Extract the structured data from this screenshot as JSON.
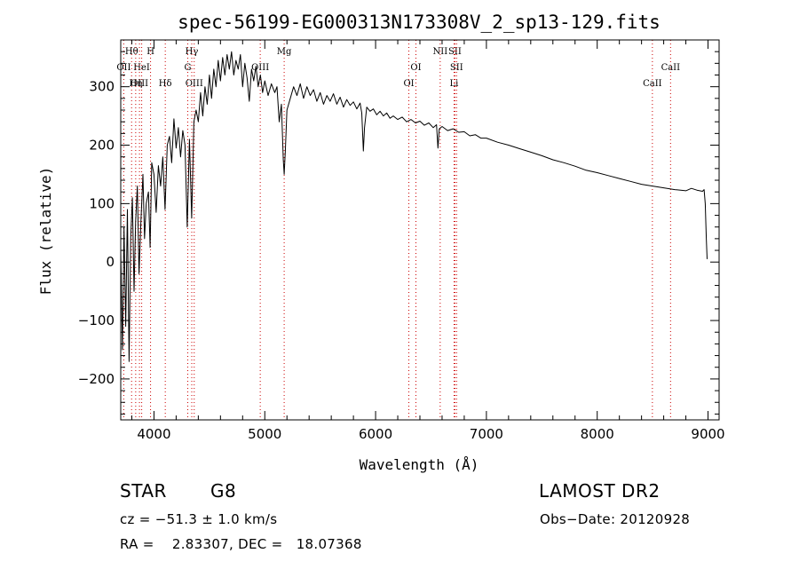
{
  "chart_data": {
    "type": "line",
    "title": "spec-56199-EG000313N173308V_2_sp13-129.fits",
    "xlabel": "Wavelength (Å)",
    "ylabel": "Flux (relative)",
    "xlim": [
      3700,
      9100
    ],
    "ylim": [
      -270,
      380
    ],
    "xticks": [
      "4000",
      "5000",
      "6000",
      "7000",
      "8000",
      "9000"
    ],
    "yticks": [
      "-200",
      "-100",
      "0",
      "100",
      "200",
      "300"
    ],
    "grid": false,
    "series": [
      {
        "values": [
          [
            3700,
            20
          ],
          [
            3715,
            -150
          ],
          [
            3730,
            60
          ],
          [
            3745,
            -110
          ],
          [
            3760,
            90
          ],
          [
            3775,
            -170
          ],
          [
            3790,
            40
          ],
          [
            3805,
            110
          ],
          [
            3820,
            -50
          ],
          [
            3835,
            70
          ],
          [
            3850,
            130
          ],
          [
            3865,
            -20
          ],
          [
            3880,
            60
          ],
          [
            3900,
            150
          ],
          [
            3915,
            40
          ],
          [
            3930,
            100
          ],
          [
            3950,
            120
          ],
          [
            3965,
            25
          ],
          [
            3980,
            170
          ],
          [
            4000,
            150
          ],
          [
            4020,
            85
          ],
          [
            4040,
            165
          ],
          [
            4060,
            130
          ],
          [
            4080,
            180
          ],
          [
            4100,
            90
          ],
          [
            4120,
            200
          ],
          [
            4140,
            215
          ],
          [
            4160,
            170
          ],
          [
            4180,
            245
          ],
          [
            4200,
            195
          ],
          [
            4220,
            230
          ],
          [
            4240,
            180
          ],
          [
            4260,
            225
          ],
          [
            4280,
            200
          ],
          [
            4300,
            60
          ],
          [
            4320,
            210
          ],
          [
            4340,
            75
          ],
          [
            4360,
            240
          ],
          [
            4380,
            260
          ],
          [
            4400,
            240
          ],
          [
            4420,
            290
          ],
          [
            4440,
            250
          ],
          [
            4460,
            300
          ],
          [
            4480,
            270
          ],
          [
            4500,
            320
          ],
          [
            4520,
            280
          ],
          [
            4540,
            330
          ],
          [
            4560,
            300
          ],
          [
            4580,
            345
          ],
          [
            4600,
            310
          ],
          [
            4620,
            350
          ],
          [
            4640,
            320
          ],
          [
            4660,
            355
          ],
          [
            4680,
            330
          ],
          [
            4700,
            360
          ],
          [
            4720,
            320
          ],
          [
            4740,
            345
          ],
          [
            4760,
            330
          ],
          [
            4780,
            355
          ],
          [
            4800,
            300
          ],
          [
            4820,
            340
          ],
          [
            4840,
            315
          ],
          [
            4860,
            275
          ],
          [
            4880,
            330
          ],
          [
            4900,
            310
          ],
          [
            4920,
            335
          ],
          [
            4940,
            300
          ],
          [
            4960,
            320
          ],
          [
            4980,
            290
          ],
          [
            5000,
            310
          ],
          [
            5030,
            285
          ],
          [
            5060,
            305
          ],
          [
            5090,
            290
          ],
          [
            5110,
            300
          ],
          [
            5130,
            240
          ],
          [
            5150,
            270
          ],
          [
            5167,
            175
          ],
          [
            5175,
            150
          ],
          [
            5185,
            190
          ],
          [
            5200,
            260
          ],
          [
            5230,
            280
          ],
          [
            5260,
            300
          ],
          [
            5290,
            285
          ],
          [
            5320,
            305
          ],
          [
            5350,
            280
          ],
          [
            5380,
            300
          ],
          [
            5410,
            285
          ],
          [
            5440,
            295
          ],
          [
            5470,
            275
          ],
          [
            5500,
            290
          ],
          [
            5530,
            270
          ],
          [
            5560,
            285
          ],
          [
            5590,
            275
          ],
          [
            5620,
            288
          ],
          [
            5650,
            270
          ],
          [
            5680,
            282
          ],
          [
            5710,
            265
          ],
          [
            5740,
            278
          ],
          [
            5770,
            268
          ],
          [
            5800,
            274
          ],
          [
            5830,
            262
          ],
          [
            5860,
            272
          ],
          [
            5875,
            255
          ],
          [
            5890,
            190
          ],
          [
            5900,
            230
          ],
          [
            5920,
            265
          ],
          [
            5950,
            258
          ],
          [
            5980,
            262
          ],
          [
            6010,
            252
          ],
          [
            6040,
            258
          ],
          [
            6070,
            250
          ],
          [
            6100,
            255
          ],
          [
            6130,
            246
          ],
          [
            6160,
            250
          ],
          [
            6200,
            244
          ],
          [
            6240,
            248
          ],
          [
            6280,
            240
          ],
          [
            6320,
            244
          ],
          [
            6360,
            238
          ],
          [
            6400,
            241
          ],
          [
            6440,
            234
          ],
          [
            6480,
            238
          ],
          [
            6520,
            230
          ],
          [
            6550,
            235
          ],
          [
            6563,
            195
          ],
          [
            6575,
            228
          ],
          [
            6600,
            232
          ],
          [
            6650,
            225
          ],
          [
            6700,
            228
          ],
          [
            6750,
            222
          ],
          [
            6800,
            223
          ],
          [
            6850,
            216
          ],
          [
            6900,
            218
          ],
          [
            6950,
            212
          ],
          [
            7000,
            212
          ],
          [
            7100,
            205
          ],
          [
            7200,
            200
          ],
          [
            7300,
            194
          ],
          [
            7400,
            188
          ],
          [
            7500,
            182
          ],
          [
            7600,
            175
          ],
          [
            7700,
            170
          ],
          [
            7800,
            164
          ],
          [
            7900,
            157
          ],
          [
            8000,
            153
          ],
          [
            8100,
            148
          ],
          [
            8200,
            143
          ],
          [
            8300,
            138
          ],
          [
            8400,
            133
          ],
          [
            8500,
            130
          ],
          [
            8600,
            127
          ],
          [
            8700,
            124
          ],
          [
            8800,
            122
          ],
          [
            8850,
            126
          ],
          [
            8900,
            123
          ],
          [
            8950,
            121
          ],
          [
            8965,
            124
          ],
          [
            8975,
            100
          ],
          [
            8985,
            40
          ],
          [
            8992,
            5
          ]
        ]
      }
    ],
    "lines_blue": [
      {
        "label": "Hθ",
        "x": 3798,
        "row": 0
      },
      {
        "label": "H",
        "x": 3969,
        "row": 0
      },
      {
        "label": "Hγ",
        "x": 4341,
        "row": 0
      },
      {
        "label": "Mg",
        "x": 5175,
        "row": 0
      },
      {
        "label": "NII",
        "x": 6583,
        "row": 0
      },
      {
        "label": "SII",
        "x": 6716,
        "row": 0
      },
      {
        "label": "OII",
        "x": 3727,
        "row": 1
      },
      {
        "label": "HeI",
        "x": 3889,
        "row": 1
      },
      {
        "label": "G",
        "x": 4305,
        "row": 1
      },
      {
        "label": "OIII",
        "x": 4959,
        "row": 1
      },
      {
        "label": "OI",
        "x": 6364,
        "row": 1
      },
      {
        "label": "SII",
        "x": 6731,
        "row": 1
      },
      {
        "label": "CaII",
        "x": 8662,
        "row": 1
      },
      {
        "label": "OIII",
        "x": 3869,
        "row": 2
      },
      {
        "label": "Hη",
        "x": 3835,
        "row": 2
      },
      {
        "label": "Hδ",
        "x": 4102,
        "row": 2
      },
      {
        "label": "OIII",
        "x": 4363,
        "row": 2
      },
      {
        "label": "OI",
        "x": 6300,
        "row": 2
      },
      {
        "label": "Li",
        "x": 6708,
        "row": 2
      },
      {
        "label": "CaII",
        "x": 8498,
        "row": 2
      }
    ],
    "annotation_line_color": "#cc0000"
  },
  "info": {
    "object_class": "STAR",
    "subclass": "G8",
    "survey": "LAMOST DR2",
    "cz": "cz = −51.3 ± 1.0 km/s",
    "obs_date": "Obs−Date: 20120928",
    "coords": "RA =    2.83307, DEC =   18.07368"
  }
}
